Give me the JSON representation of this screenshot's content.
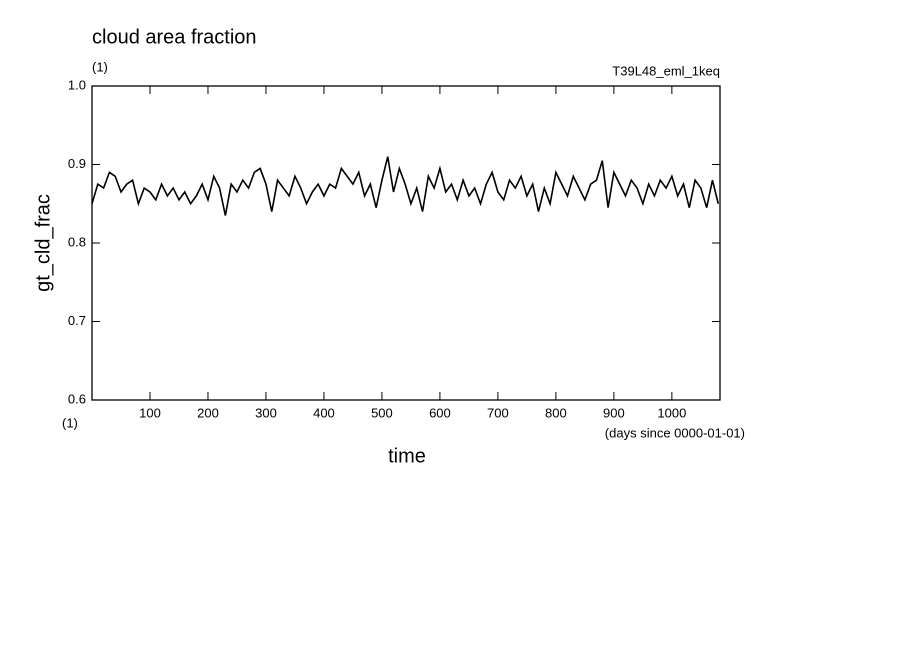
{
  "chart_data": {
    "type": "line",
    "title": "cloud area fraction",
    "title_unit": "(1)",
    "run_label": "T39L48_eml_1keq",
    "ylabel": "gt_cld_frac",
    "y_unit": "(1)",
    "xlabel": "time",
    "x_unit": "(days since 0000-01-01)",
    "color": "#000000",
    "xlim": [
      0,
      1083
    ],
    "ylim": [
      0.6,
      1
    ],
    "xticks": [
      100,
      200,
      300,
      400,
      500,
      600,
      700,
      800,
      900,
      1000
    ],
    "yticks": [
      0.6,
      0.7,
      0.8,
      0.9,
      {
        "value": 1,
        "label": "1.0"
      }
    ],
    "x": [
      0,
      10,
      20,
      30,
      40,
      50,
      60,
      70,
      80,
      90,
      100,
      110,
      120,
      130,
      140,
      150,
      160,
      170,
      180,
      190,
      200,
      210,
      220,
      230,
      240,
      250,
      260,
      270,
      280,
      290,
      300,
      310,
      320,
      330,
      340,
      350,
      360,
      370,
      380,
      390,
      400,
      410,
      420,
      430,
      440,
      450,
      460,
      470,
      480,
      490,
      500,
      510,
      520,
      530,
      540,
      550,
      560,
      570,
      580,
      590,
      600,
      610,
      620,
      630,
      640,
      650,
      660,
      670,
      680,
      690,
      700,
      710,
      720,
      730,
      740,
      750,
      760,
      770,
      780,
      790,
      800,
      810,
      820,
      830,
      840,
      850,
      860,
      870,
      880,
      890,
      900,
      910,
      920,
      930,
      940,
      950,
      960,
      970,
      980,
      990,
      1000,
      1010,
      1020,
      1030,
      1040,
      1050,
      1060,
      1070,
      1080
    ],
    "values": [
      0.85,
      0.875,
      0.87,
      0.89,
      0.885,
      0.865,
      0.875,
      0.88,
      0.85,
      0.87,
      0.865,
      0.855,
      0.875,
      0.86,
      0.87,
      0.855,
      0.865,
      0.85,
      0.86,
      0.875,
      0.855,
      0.885,
      0.87,
      0.835,
      0.875,
      0.865,
      0.88,
      0.87,
      0.89,
      0.895,
      0.875,
      0.84,
      0.88,
      0.87,
      0.86,
      0.885,
      0.87,
      0.85,
      0.865,
      0.875,
      0.86,
      0.875,
      0.87,
      0.895,
      0.885,
      0.875,
      0.89,
      0.86,
      0.875,
      0.845,
      0.88,
      0.91,
      0.865,
      0.895,
      0.875,
      0.85,
      0.87,
      0.84,
      0.885,
      0.87,
      0.895,
      0.865,
      0.875,
      0.855,
      0.88,
      0.86,
      0.87,
      0.85,
      0.875,
      0.89,
      0.865,
      0.855,
      0.88,
      0.87,
      0.885,
      0.86,
      0.875,
      0.84,
      0.87,
      0.85,
      0.89,
      0.875,
      0.86,
      0.885,
      0.87,
      0.855,
      0.875,
      0.88,
      0.905,
      0.845,
      0.89,
      0.875,
      0.86,
      0.88,
      0.87,
      0.85,
      0.875,
      0.86,
      0.88,
      0.87,
      0.885,
      0.86,
      0.875,
      0.845,
      0.88,
      0.87,
      0.845,
      0.88,
      0.85
    ]
  }
}
